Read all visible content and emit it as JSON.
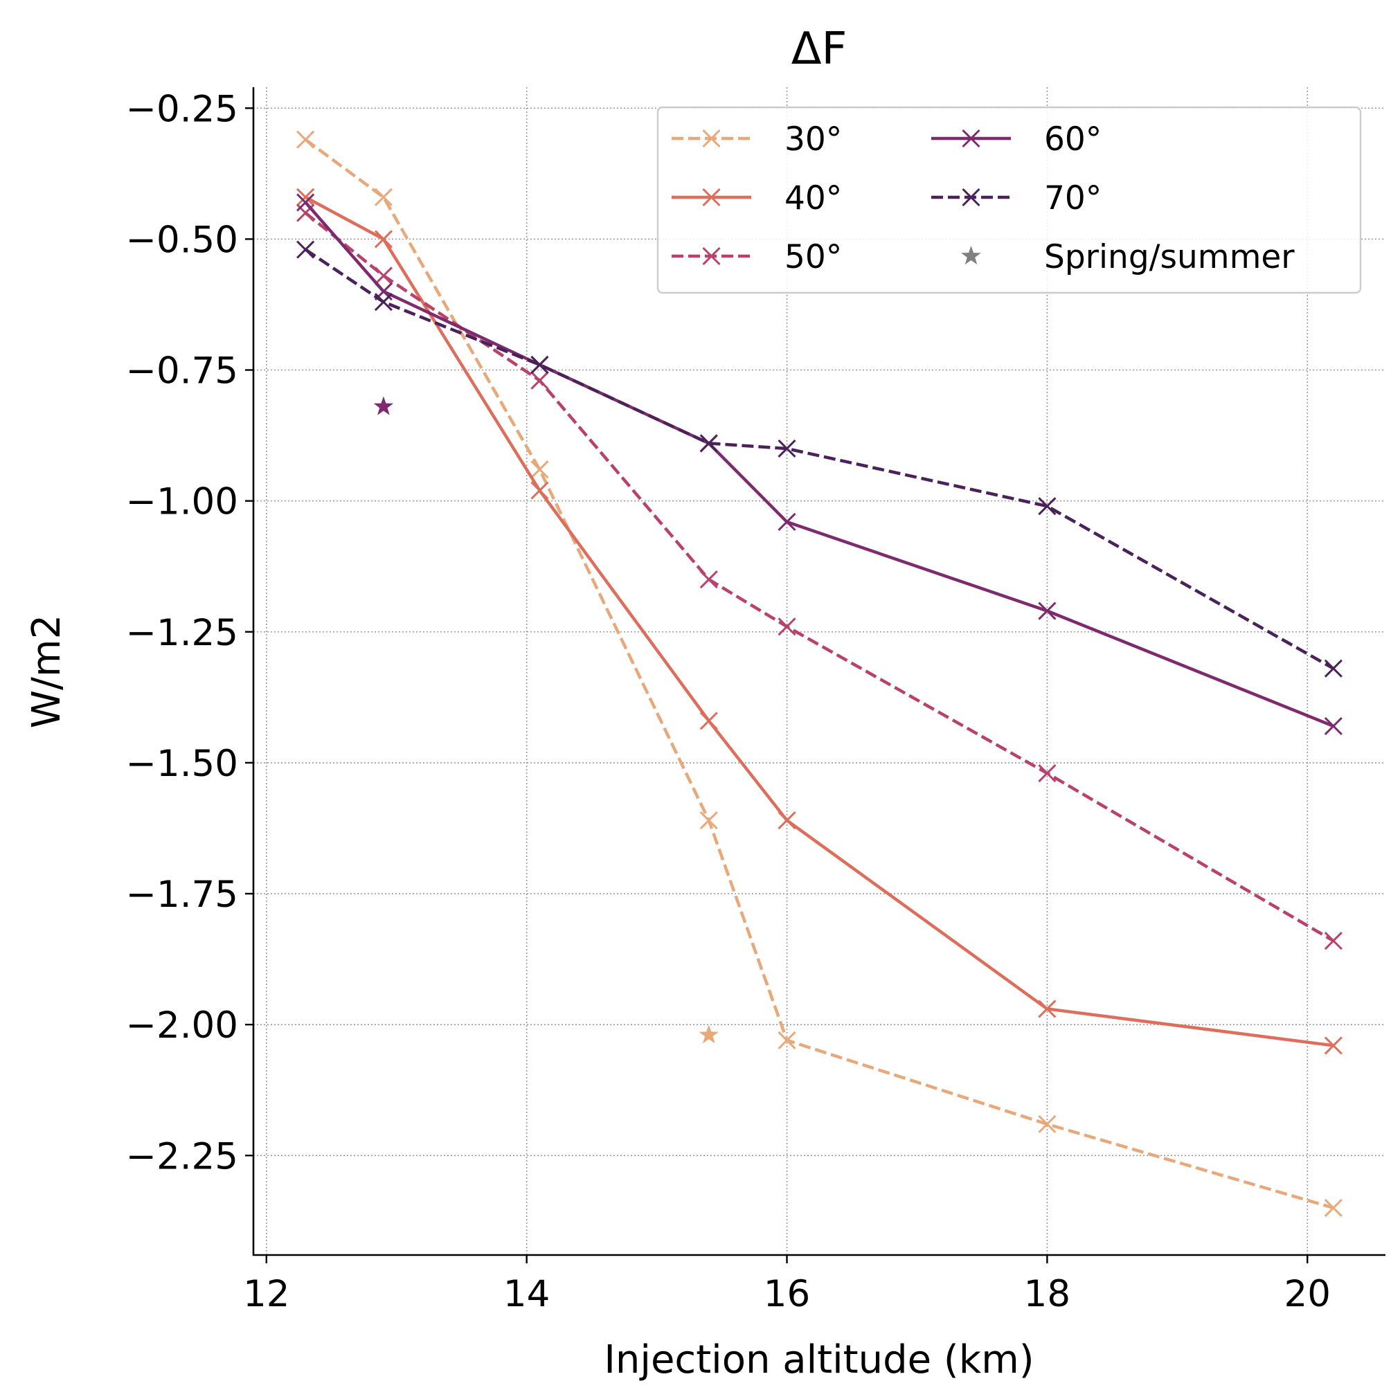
{
  "chart_data": {
    "type": "line",
    "title": "ΔF",
    "xlabel": "Injection altitude (km)",
    "ylabel": "W/m2",
    "xlim": [
      11.9,
      20.6
    ],
    "ylim": [
      -2.44,
      -0.21
    ],
    "xticks": [
      12,
      14,
      16,
      18,
      20
    ],
    "yticks": [
      -0.25,
      -0.5,
      -0.75,
      -1.0,
      -1.25,
      -1.5,
      -1.75,
      -2.0,
      -2.25
    ],
    "xtick_labels": [
      "12",
      "14",
      "16",
      "18",
      "20"
    ],
    "ytick_labels": [
      "−0.25",
      "−0.50",
      "−0.75",
      "−1.00",
      "−1.25",
      "−1.50",
      "−1.75",
      "−2.00",
      "−2.25"
    ],
    "grid": true,
    "legend_position": "top-right",
    "series": [
      {
        "name": "30°",
        "color": "#e8a97a",
        "dashed": true,
        "x": [
          12.3,
          12.9,
          14.1,
          15.4,
          16.0,
          18.0,
          20.2
        ],
        "y": [
          -0.31,
          -0.42,
          -0.94,
          -1.61,
          -2.03,
          -2.19,
          -2.35
        ]
      },
      {
        "name": "40°",
        "color": "#dd6e5b",
        "dashed": false,
        "x": [
          12.3,
          12.9,
          14.1,
          15.4,
          16.0,
          18.0,
          20.2
        ],
        "y": [
          -0.42,
          -0.5,
          -0.98,
          -1.42,
          -1.61,
          -1.97,
          -2.04
        ]
      },
      {
        "name": "50°",
        "color": "#b84269",
        "dashed": true,
        "x": [
          12.3,
          12.9,
          14.1,
          15.4,
          16.0,
          18.0,
          20.2
        ],
        "y": [
          -0.45,
          -0.57,
          -0.77,
          -1.15,
          -1.24,
          -1.52,
          -1.84
        ]
      },
      {
        "name": "60°",
        "color": "#7d2b6e",
        "dashed": false,
        "x": [
          12.3,
          12.9,
          14.1,
          15.4,
          16.0,
          18.0,
          20.2
        ],
        "y": [
          -0.43,
          -0.6,
          -0.74,
          -0.89,
          -1.04,
          -1.21,
          -1.43
        ]
      },
      {
        "name": "70°",
        "color": "#4a2159",
        "dashed": true,
        "x": [
          12.3,
          12.9,
          14.1,
          15.4,
          16.0,
          18.0,
          20.2
        ],
        "y": [
          -0.52,
          -0.62,
          -0.74,
          -0.89,
          -0.9,
          -1.01,
          -1.32
        ]
      }
    ],
    "spring_summer": {
      "name": "Spring/summer",
      "legend_color": "#808080",
      "points": [
        {
          "x": 12.9,
          "y": -0.82,
          "color": "#7d2b6e"
        },
        {
          "x": 15.4,
          "y": -2.02,
          "color": "#e8a97a"
        }
      ]
    }
  }
}
